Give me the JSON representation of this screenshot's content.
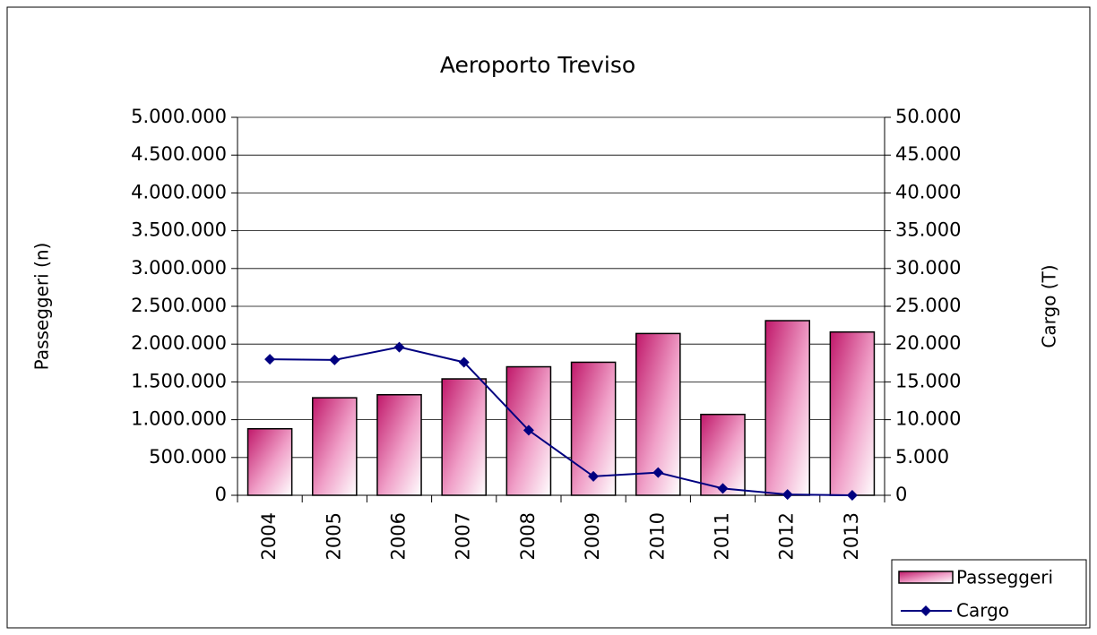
{
  "chart_data": {
    "type": "bar_line",
    "title": "Aeroporto Treviso",
    "y_label": "Passeggeri (n)",
    "y2_label": "Cargo (T)",
    "categories": [
      "2004",
      "2005",
      "2006",
      "2007",
      "2008",
      "2009",
      "2010",
      "2011",
      "2012",
      "2013"
    ],
    "series": [
      {
        "name": "Passeggeri",
        "type": "bar",
        "color": "#c0186a",
        "values": [
          880000,
          1290000,
          1330000,
          1540000,
          1700000,
          1760000,
          2140000,
          1070000,
          2310000,
          2160000
        ]
      },
      {
        "name": "Cargo",
        "type": "line",
        "axis": "y2",
        "color": "#000080",
        "values": [
          18000,
          17900,
          19600,
          17600,
          8600,
          2500,
          3000,
          900,
          100,
          0
        ]
      }
    ],
    "ylim": [
      0,
      5000000
    ],
    "yticks": [
      0,
      {
        "value": 500000,
        "label": "500.000"
      },
      {
        "value": 1000000,
        "label": "1.000.000"
      },
      {
        "value": 1500000,
        "label": "1.500.000"
      },
      {
        "value": 2000000,
        "label": "2.000.000"
      },
      {
        "value": 2500000,
        "label": "2.500.000"
      },
      {
        "value": 3000000,
        "label": "3.000.000"
      },
      {
        "value": 3500000,
        "label": "3.500.000"
      },
      {
        "value": 4000000,
        "label": "4.000.000"
      },
      {
        "value": 4500000,
        "label": "4.500.000"
      },
      {
        "value": 5000000,
        "label": "5.000.000"
      }
    ],
    "y2lim": [
      0,
      50000
    ],
    "y2ticks": [
      0,
      {
        "value": 5000,
        "label": "5.000"
      },
      {
        "value": 10000,
        "label": "10.000"
      },
      {
        "value": 15000,
        "label": "15.000"
      },
      {
        "value": 20000,
        "label": "20.000"
      },
      {
        "value": 25000,
        "label": "25.000"
      },
      {
        "value": 30000,
        "label": "30.000"
      },
      {
        "value": 35000,
        "label": "35.000"
      },
      {
        "value": 40000,
        "label": "40.000"
      },
      {
        "value": 45000,
        "label": "45.000"
      },
      {
        "value": 50000,
        "label": "50.000"
      }
    ],
    "grid": true,
    "legend": "bottom-right"
  }
}
